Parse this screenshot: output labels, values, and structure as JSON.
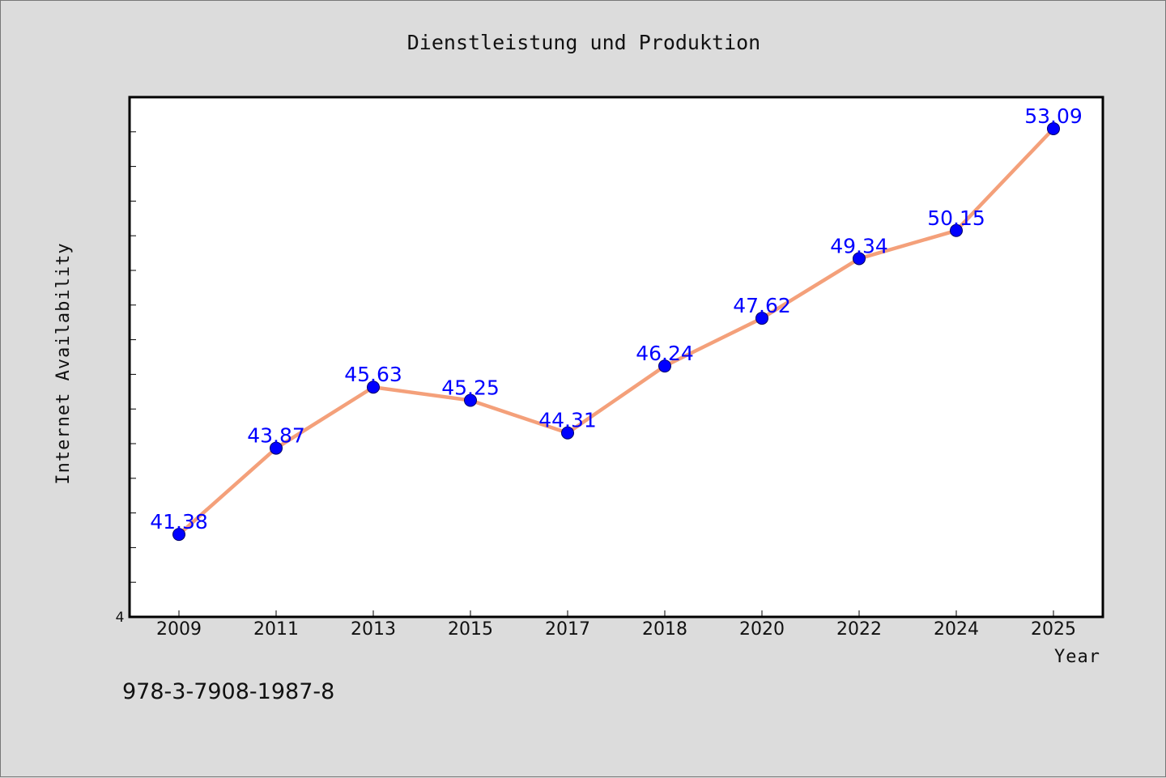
{
  "chart_data": {
    "type": "line",
    "title": "Dienstleistung und Produktion",
    "xlabel": "Year",
    "ylabel": "Internet Availability",
    "categories": [
      "2009",
      "2011",
      "2013",
      "2015",
      "2017",
      "2018",
      "2020",
      "2022",
      "2024",
      "2025"
    ],
    "series": [
      {
        "values": [
          41.38,
          43.87,
          45.63,
          45.25,
          44.31,
          46.24,
          47.62,
          49.34,
          50.15,
          53.09
        ],
        "labels": [
          "41.38",
          "43.87",
          "45.63",
          "45.25",
          "44.31",
          "46.24",
          "47.62",
          "49.34",
          "50.15",
          "53.09"
        ],
        "line_color": "#f4a07a",
        "marker_color": "#0000ff"
      }
    ],
    "ylim": [
      39,
      54
    ],
    "y_tick_visible_label": "4",
    "grid": false,
    "legend": "none"
  },
  "footer_text": "978-3-7908-1987-8",
  "colors": {
    "background": "#dcdcdc",
    "plot_background": "#ffffff",
    "line": "#f4a07a",
    "marker": "#0000ff",
    "data_label": "#0000ff"
  }
}
